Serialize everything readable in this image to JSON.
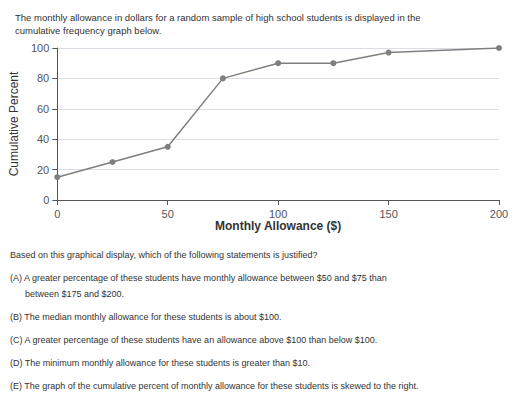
{
  "chart_data": {
    "type": "line",
    "title": "The monthly allowance in dollars for a random sample of high school students is displayed in the\ncumulative frequency graph below.",
    "x": [
      0,
      25,
      50,
      75,
      100,
      125,
      150,
      200
    ],
    "values": [
      15,
      25,
      35,
      80,
      90,
      90,
      97,
      100
    ],
    "color": "#7f7f7f",
    "marker": "circle",
    "xlabel": "Monthly Allowance ($)",
    "ylabel": "Cumulative Percent",
    "xlim": [
      0,
      200
    ],
    "xticks": [
      0,
      50,
      100,
      150,
      200
    ],
    "ylim": [
      0,
      100
    ],
    "yticks": [
      0,
      20,
      40,
      60,
      80,
      100
    ],
    "grid": true,
    "annotations": [
      "Based on this graphical display, which of the following statements is justified?",
      "(A) A greater percentage of these students have monthly allowance between $50 and $75 than",
      "      between $175 and $200.",
      "(B) The median monthly allowance for these students is about $100.",
      "(C) A greater percentage of these students have an allowance above $100 than below $100.",
      "(D) The minimum monthly allowance for these students is greater than $10.",
      "(E) The graph of the cumulative percent of monthly allowance for these students is skewed to the right."
    ]
  }
}
